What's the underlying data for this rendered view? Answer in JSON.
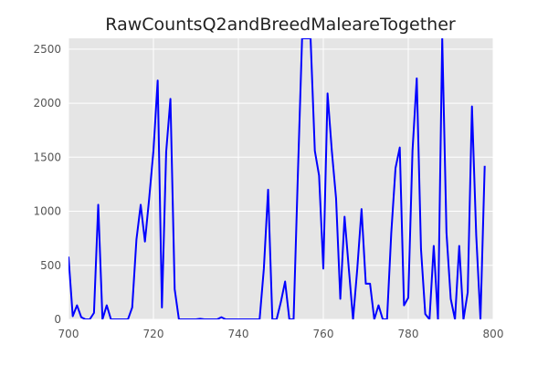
{
  "chart_data": {
    "type": "line",
    "title": "RawCountsQ2andBreedMaleareTogether",
    "xlabel": "",
    "ylabel": "",
    "xlim": [
      700,
      800
    ],
    "ylim": [
      0,
      2600
    ],
    "x_ticks": [
      700,
      720,
      740,
      760,
      780,
      800
    ],
    "y_ticks": [
      0,
      500,
      1000,
      1500,
      2000,
      2500
    ],
    "grid": true,
    "background": "#e5e5e5",
    "grid_color": "#ffffff",
    "line_color": "#0000ff",
    "series": [
      {
        "x": [
          700,
          701,
          702,
          703,
          704,
          705,
          706,
          707,
          708,
          709,
          710,
          711,
          712,
          713,
          714,
          715,
          716,
          717,
          718,
          719,
          720,
          721,
          722,
          723,
          724,
          725,
          726,
          727,
          728,
          729,
          730,
          731,
          732,
          733,
          734,
          735,
          736,
          737,
          738,
          739,
          740,
          741,
          742,
          743,
          744,
          745,
          746,
          747,
          748,
          749,
          750,
          751,
          752,
          753,
          754,
          755,
          756,
          757,
          758,
          759,
          760,
          761,
          762,
          763,
          764,
          765,
          766,
          767,
          768,
          769,
          770,
          771,
          772,
          773,
          774,
          775,
          776,
          777,
          778,
          779,
          780,
          781,
          782,
          783,
          784,
          785,
          786,
          787,
          788,
          789,
          790,
          791,
          792,
          793,
          794,
          795,
          796,
          797,
          798
        ],
        "y": [
          580,
          30,
          130,
          20,
          0,
          0,
          60,
          1060,
          0,
          130,
          0,
          0,
          0,
          0,
          0,
          110,
          740,
          1060,
          720,
          1120,
          1560,
          2210,
          110,
          1550,
          2040,
          280,
          0,
          0,
          0,
          0,
          0,
          5,
          0,
          0,
          0,
          0,
          20,
          0,
          0,
          0,
          0,
          0,
          0,
          0,
          0,
          0,
          470,
          1200,
          0,
          0,
          160,
          350,
          0,
          0,
          1330,
          2600,
          2600,
          2600,
          1560,
          1330,
          470,
          2090,
          1560,
          1120,
          190,
          950,
          470,
          0,
          470,
          1020,
          330,
          330,
          0,
          130,
          0,
          0,
          800,
          1400,
          1590,
          130,
          200,
          1560,
          2230,
          650,
          50,
          0,
          680,
          0,
          2600,
          800,
          190,
          0,
          680,
          0,
          250,
          1970,
          780,
          0,
          1420
        ]
      }
    ]
  }
}
